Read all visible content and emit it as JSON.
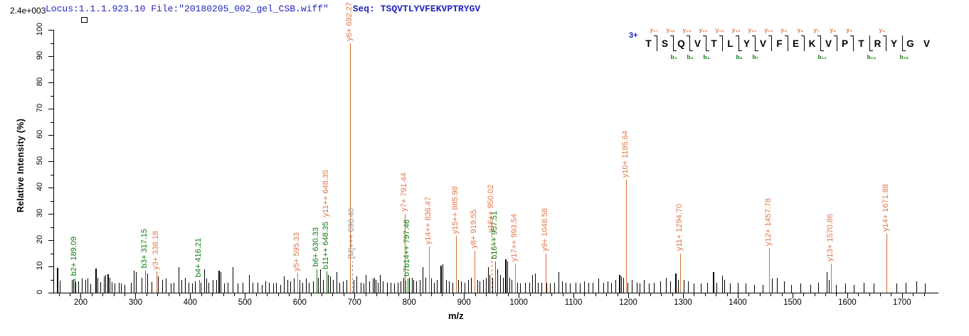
{
  "header": {
    "scale_label": "2.4e+003",
    "locus_text": "Locus:1.1.1.923.10 File:\"20180205_002_gel_CSB.wiff\"",
    "seq_label": "Seq:",
    "sequence": "TSQVTLYVFEKVPTRYGV"
  },
  "axes": {
    "x_label": "m/z",
    "y_label": "Relative  Intensity (%)",
    "x_ticks": [
      200,
      300,
      400,
      500,
      600,
      700,
      800,
      900,
      1000,
      1100,
      1200,
      1300,
      1400,
      1500,
      1600,
      1700
    ],
    "x_minor_step": 20,
    "y_ticks": [
      0,
      10,
      20,
      30,
      40,
      50,
      60,
      70,
      80,
      90,
      100
    ],
    "y_minor_step": 5,
    "x_range": [
      150,
      1760
    ],
    "y_range": [
      0,
      100
    ]
  },
  "colors": {
    "y_ion_line": "#d8702f",
    "y_ion_label": "#e0794b",
    "b_ion_line": "#0e8a0e",
    "b_ion_label": "#0e7d0e",
    "precursor": "#8f8f8f",
    "noise_peak": "#000000",
    "axis": "#000000",
    "header_blue": "#2323bd",
    "charge_blue": "#1414c8"
  },
  "fragment_map": {
    "charge_label": "3+",
    "residues": [
      "T",
      "S",
      "Q",
      "V",
      "T",
      "L",
      "Y",
      "V",
      "F",
      "E",
      "K",
      "V",
      "P",
      "T",
      "R",
      "Y",
      "G",
      "V"
    ],
    "cuts": [
      {
        "after": 1,
        "y": "y₁₇",
        "b": null
      },
      {
        "after": 2,
        "y": "y₁₆",
        "b": "b₂"
      },
      {
        "after": 3,
        "y": "y₁₅",
        "b": "b₃"
      },
      {
        "after": 4,
        "y": "y₁₄",
        "b": "b₄"
      },
      {
        "after": 5,
        "y": "y₁₃",
        "b": null
      },
      {
        "after": 6,
        "y": "y₁₂",
        "b": "b₆"
      },
      {
        "after": 7,
        "y": "y₁₁",
        "b": "b₇"
      },
      {
        "after": 8,
        "y": "y₁₀",
        "b": null
      },
      {
        "after": 9,
        "y": "y₉",
        "b": null
      },
      {
        "after": 10,
        "y": "y₈",
        "b": null
      },
      {
        "after": 11,
        "y": "y₇",
        "b": "b₁₁"
      },
      {
        "after": 12,
        "y": "y₆",
        "b": null
      },
      {
        "after": 13,
        "y": "y₅",
        "b": null
      },
      {
        "after": 14,
        "y": null,
        "b": "b₁₄"
      },
      {
        "after": 15,
        "y": "y₃",
        "b": null
      },
      {
        "after": 16,
        "y": null,
        "b": "b₁₆"
      }
    ]
  },
  "chart_data": {
    "type": "bar",
    "subtype": "ms2-centroid-mass-spectrum",
    "title": "",
    "xlabel": "m/z",
    "ylabel": "Relative Intensity (%)",
    "xlim": [
      150,
      1760
    ],
    "ylim": [
      0,
      100
    ],
    "grid": false,
    "absolute_intensity_scale": "2.4e+003",
    "precursor_charge": "3+",
    "peptide": "TSQVTLYVFEKVPTRYGV",
    "labeled_peaks": [
      {
        "label": "b2+ 189.09",
        "mz": 189.09,
        "intensity_pct": 5.5,
        "ion": "b"
      },
      {
        "label": "b3+ 317.15",
        "mz": 317.15,
        "intensity_pct": 8.5,
        "ion": "b"
      },
      {
        "label": "y3+ 338.18",
        "mz": 338.18,
        "intensity_pct": 8,
        "ion": "y"
      },
      {
        "label": "b4+ 416.21",
        "mz": 416.21,
        "intensity_pct": 5,
        "ion": "b"
      },
      {
        "label": "y5+ 595.33",
        "mz": 595.33,
        "intensity_pct": 7.5,
        "ion": "y"
      },
      {
        "label": "b6+ 630.33",
        "mz": 630.33,
        "intensity_pct": 9,
        "ion": "b"
      },
      {
        "label": "b11++ 648.35",
        "mz": 648.35,
        "intensity_pct": 8,
        "ion": "b",
        "second_label": {
          "text": "y11++ 648.35",
          "ion": "y"
        }
      },
      {
        "label": "y6+ 692.27",
        "mz": 692.27,
        "intensity_pct": 95,
        "ion": "y"
      },
      {
        "label": "[M]+++ 696.40",
        "mz": 696.4,
        "intensity_pct": 12,
        "ion": "M",
        "dashed": true
      },
      {
        "label": "y7+ 791.44",
        "mz": 791.44,
        "intensity_pct": 30,
        "ion": "y"
      },
      {
        "label": "b7b14++ 797.46",
        "mz": 797.46,
        "intensity_pct": 5.5,
        "ion": "b",
        "extra_line": {
          "mz": 793.41,
          "intensity_pct": 4.5
        }
      },
      {
        "label": "y14++ 836.47",
        "mz": 836.47,
        "intensity_pct": 17.5,
        "ion": "y"
      },
      {
        "label": "y15++ 885.98",
        "mz": 885.98,
        "intensity_pct": 21.5,
        "ion": "y"
      },
      {
        "label": "y8+ 919.55",
        "mz": 919.55,
        "intensity_pct": 16,
        "ion": "y"
      },
      {
        "label": "y16++ 950.02",
        "mz": 950.02,
        "intensity_pct": 22,
        "ion": "y",
        "dashed": true
      },
      {
        "label": "b16++ 957.51",
        "mz": 957.51,
        "intensity_pct": 12,
        "ion": "b"
      },
      {
        "label": "y17++ 993.54",
        "mz": 993.54,
        "intensity_pct": 11,
        "ion": "y"
      },
      {
        "label": "y9+ 1048.58",
        "mz": 1048.58,
        "intensity_pct": 15,
        "ion": "y"
      },
      {
        "label": "y10+ 1195.64",
        "mz": 1195.64,
        "intensity_pct": 43,
        "ion": "y"
      },
      {
        "label": "y11+ 1294.70",
        "mz": 1294.7,
        "intensity_pct": 15,
        "ion": "y"
      },
      {
        "label": "y12+ 1457.78",
        "mz": 1457.78,
        "intensity_pct": 17,
        "ion": "y"
      },
      {
        "label": "y13+ 1570.86",
        "mz": 1570.86,
        "intensity_pct": 11,
        "ion": "y"
      },
      {
        "label": "y14+ 1671.88",
        "mz": 1671.88,
        "intensity_pct": 22.5,
        "ion": "y"
      }
    ],
    "unlabeled_peaks": [
      [
        157,
        9.5,
        2
      ],
      [
        162,
        4.5
      ],
      [
        184,
        4.8
      ],
      [
        187,
        5.2
      ],
      [
        190,
        4
      ],
      [
        195,
        4.2
      ],
      [
        202,
        5.5
      ],
      [
        209,
        5
      ],
      [
        213,
        5.3
      ],
      [
        218,
        3.2
      ],
      [
        227,
        9.3,
        2
      ],
      [
        231,
        5.6
      ],
      [
        236,
        4
      ],
      [
        242,
        6.3
      ],
      [
        245,
        6.8
      ],
      [
        249,
        7,
        2
      ],
      [
        253,
        5.8
      ],
      [
        257,
        4
      ],
      [
        262,
        3.4
      ],
      [
        269,
        3.8
      ],
      [
        273,
        3.4
      ],
      [
        280,
        3
      ],
      [
        291,
        3.8
      ],
      [
        297,
        8.3
      ],
      [
        301,
        7.8
      ],
      [
        311,
        5.8
      ],
      [
        321,
        7.3
      ],
      [
        329,
        4
      ],
      [
        341,
        6.3
      ],
      [
        349,
        4.8
      ],
      [
        355,
        5.3
      ],
      [
        364,
        3.4
      ],
      [
        370,
        3.8
      ],
      [
        379,
        9.8
      ],
      [
        384,
        4.8
      ],
      [
        390,
        5.8
      ],
      [
        397,
        3.8
      ],
      [
        403,
        3.4
      ],
      [
        409,
        4.4
      ],
      [
        419,
        3.8
      ],
      [
        425,
        8.8
      ],
      [
        429,
        5.4
      ],
      [
        433,
        3.8
      ],
      [
        441,
        4.8
      ],
      [
        447,
        4.8
      ],
      [
        451,
        8.3,
        2
      ],
      [
        455,
        7.8
      ],
      [
        462,
        3.4
      ],
      [
        469,
        3.8
      ],
      [
        478,
        9.8
      ],
      [
        487,
        3.4
      ],
      [
        496,
        3.8
      ],
      [
        507,
        6.8
      ],
      [
        514,
        3.8
      ],
      [
        523,
        3.8
      ],
      [
        531,
        3
      ],
      [
        537,
        4.4
      ],
      [
        544,
        3.8
      ],
      [
        551,
        3.4
      ],
      [
        557,
        3.8
      ],
      [
        564,
        3
      ],
      [
        571,
        6.3
      ],
      [
        577,
        4.8
      ],
      [
        583,
        4.4
      ],
      [
        589,
        5.3
      ],
      [
        599,
        4.8
      ],
      [
        605,
        3.8
      ],
      [
        611,
        5.3
      ],
      [
        617,
        3.8
      ],
      [
        624,
        4.4
      ],
      [
        633,
        5.8
      ],
      [
        637,
        8.8
      ],
      [
        642,
        4.8
      ],
      [
        651,
        6.8
      ],
      [
        655,
        6.3
      ],
      [
        661,
        4.8
      ],
      [
        667,
        7.8
      ],
      [
        672,
        3.8
      ],
      [
        679,
        4.4
      ],
      [
        685,
        4.8
      ],
      [
        699,
        4.8
      ],
      [
        704,
        6.3
      ],
      [
        711,
        3.8
      ],
      [
        717,
        3.4
      ],
      [
        721,
        6.8
      ],
      [
        727,
        4.4
      ],
      [
        733,
        5.3
      ],
      [
        736,
        5.8
      ],
      [
        739,
        4.8
      ],
      [
        743,
        3.8
      ],
      [
        747,
        6.8
      ],
      [
        752,
        4.4
      ],
      [
        759,
        3.8
      ],
      [
        766,
        3.8
      ],
      [
        773,
        3.4
      ],
      [
        779,
        3.8
      ],
      [
        784,
        4.4
      ],
      [
        789,
        5.8
      ],
      [
        800,
        5.8
      ],
      [
        805,
        5.8
      ],
      [
        808,
        4.8
      ],
      [
        813,
        4.4
      ],
      [
        819,
        4.8
      ],
      [
        825,
        9.8
      ],
      [
        829,
        5.8
      ],
      [
        840,
        5.3
      ],
      [
        845,
        3.8
      ],
      [
        851,
        4.8
      ],
      [
        857,
        10.3,
        2
      ],
      [
        861,
        10.8
      ],
      [
        867,
        4.8
      ],
      [
        873,
        4.4
      ],
      [
        879,
        3.8
      ],
      [
        889,
        4.8
      ],
      [
        895,
        4.4
      ],
      [
        901,
        3.8
      ],
      [
        907,
        4.8
      ],
      [
        913,
        5.8
      ],
      [
        924,
        4.8
      ],
      [
        929,
        4.4
      ],
      [
        935,
        4.8
      ],
      [
        940,
        5.8
      ],
      [
        944,
        9.8
      ],
      [
        947,
        6.8
      ],
      [
        952,
        5.8
      ],
      [
        961,
        8.8
      ],
      [
        966,
        6.8
      ],
      [
        971,
        5.8
      ],
      [
        975,
        12.8,
        2
      ],
      [
        979,
        11.8
      ],
      [
        983,
        5.8
      ],
      [
        987,
        4.8
      ],
      [
        997,
        3.8
      ],
      [
        1003,
        3.4
      ],
      [
        1011,
        3.8
      ],
      [
        1019,
        3.8
      ],
      [
        1025,
        6.8
      ],
      [
        1030,
        7.3
      ],
      [
        1035,
        3.8
      ],
      [
        1041,
        3.8
      ],
      [
        1051,
        3.8
      ],
      [
        1057,
        3.4
      ],
      [
        1065,
        3.8
      ],
      [
        1072,
        7.8
      ],
      [
        1079,
        4.4
      ],
      [
        1086,
        3.8
      ],
      [
        1094,
        3.4
      ],
      [
        1104,
        3.8
      ],
      [
        1111,
        3.4
      ],
      [
        1119,
        4.4
      ],
      [
        1127,
        3.8
      ],
      [
        1135,
        3.8
      ],
      [
        1145,
        5.4
      ],
      [
        1154,
        3.8
      ],
      [
        1162,
        4.4
      ],
      [
        1169,
        3.8
      ],
      [
        1177,
        4.8
      ],
      [
        1183,
        6.8,
        2
      ],
      [
        1187,
        6.3
      ],
      [
        1191,
        5.8
      ],
      [
        1199,
        3.8
      ],
      [
        1207,
        4.8
      ],
      [
        1215,
        3.8
      ],
      [
        1221,
        3.4
      ],
      [
        1228,
        4.8
      ],
      [
        1237,
        3.4
      ],
      [
        1247,
        3.8
      ],
      [
        1259,
        4.4
      ],
      [
        1269,
        5.8
      ],
      [
        1277,
        4.4
      ],
      [
        1286,
        7.4,
        2
      ],
      [
        1291,
        4.8
      ],
      [
        1301,
        4.8
      ],
      [
        1309,
        4.4
      ],
      [
        1320,
        3.4
      ],
      [
        1332,
        3.4
      ],
      [
        1344,
        3.8
      ],
      [
        1354,
        7.8,
        2
      ],
      [
        1361,
        3.8
      ],
      [
        1372,
        6.4
      ],
      [
        1375,
        4.8
      ],
      [
        1386,
        3.4
      ],
      [
        1400,
        3.8
      ],
      [
        1414,
        3.4
      ],
      [
        1430,
        3
      ],
      [
        1446,
        3
      ],
      [
        1462,
        5.4
      ],
      [
        1471,
        5.8
      ],
      [
        1484,
        4.4
      ],
      [
        1498,
        3
      ],
      [
        1515,
        3.4
      ],
      [
        1532,
        3
      ],
      [
        1547,
        3.8
      ],
      [
        1563,
        7.8
      ],
      [
        1567,
        4.8
      ],
      [
        1580,
        3
      ],
      [
        1596,
        3.4
      ],
      [
        1612,
        3
      ],
      [
        1630,
        3.8
      ],
      [
        1648,
        3.4
      ],
      [
        1690,
        3.4
      ],
      [
        1707,
        3.8
      ],
      [
        1726,
        4.4
      ],
      [
        1742,
        3.4
      ]
    ]
  }
}
